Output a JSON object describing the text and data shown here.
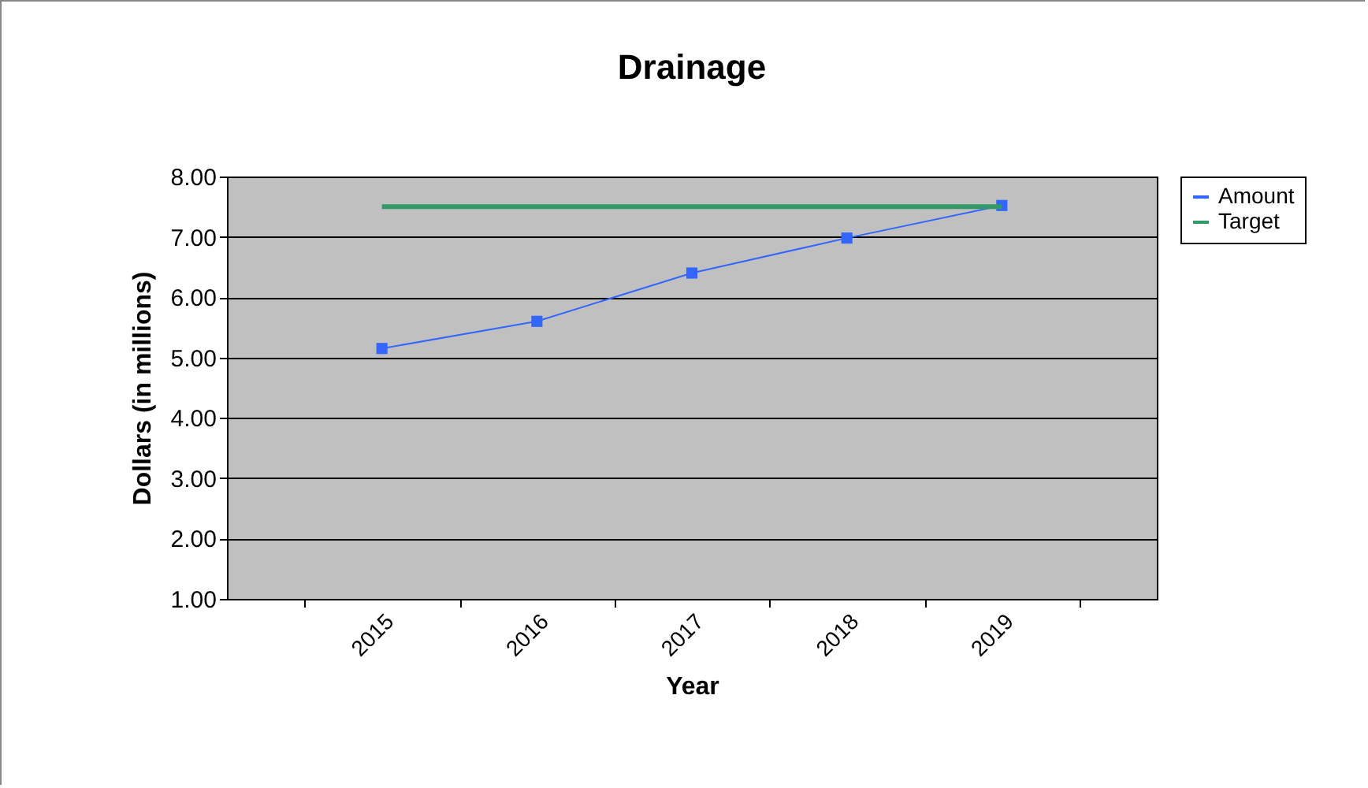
{
  "chart_data": {
    "type": "line",
    "title": "Drainage",
    "xlabel": "Year",
    "ylabel": "Dollars (in millions)",
    "categories": [
      "2015",
      "2016",
      "2017",
      "2018",
      "2019"
    ],
    "series": [
      {
        "name": "Amount",
        "color": "#3366ff",
        "values": [
          5.15,
          5.6,
          6.4,
          6.98,
          7.52
        ],
        "marker": "square"
      },
      {
        "name": "Target",
        "color": "#339966",
        "values": [
          7.5,
          7.5,
          7.5,
          7.5,
          7.5
        ],
        "marker": "none"
      }
    ],
    "ylim": [
      1,
      8
    ],
    "yticks": [
      {
        "value": 1,
        "label": "1.00"
      },
      {
        "value": 2,
        "label": "2.00"
      },
      {
        "value": 3,
        "label": "3.00"
      },
      {
        "value": 4,
        "label": "4.00"
      },
      {
        "value": 5,
        "label": "5.00"
      },
      {
        "value": 6,
        "label": "6.00"
      },
      {
        "value": 7,
        "label": "7.00"
      },
      {
        "value": 8,
        "label": "8.00"
      }
    ],
    "grid": "y",
    "legend": "right"
  }
}
